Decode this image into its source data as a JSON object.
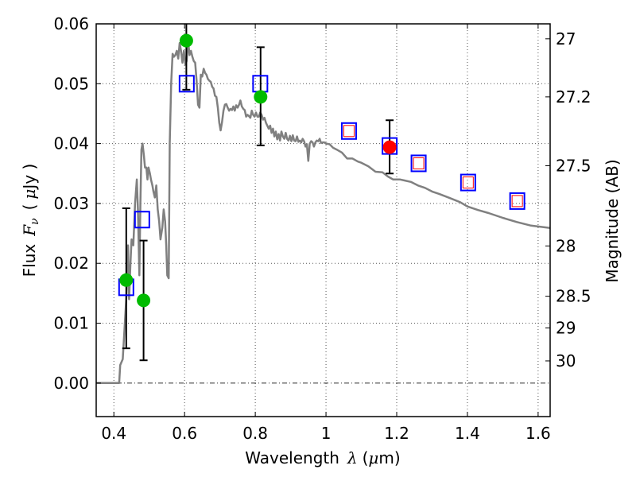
{
  "chart_data": {
    "type": "scatter",
    "title": "",
    "xlabel": "Wavelength",
    "xlabel_symbol": "λ",
    "xlabel_unit_open": "(",
    "xlabel_unit_mu": "μ",
    "xlabel_unit_rest": "m)",
    "ylabel": "Flux",
    "ylabel_symbol": "F",
    "ylabel_subscript": "ν",
    "ylabel_unit_open": "(",
    "ylabel_unit_mu": "μ",
    "ylabel_unit_rest": "Jy )",
    "y2label": "Magnitude (AB)",
    "xlim": [
      0.35,
      1.634
    ],
    "ylim": [
      -0.0056,
      0.06
    ],
    "grid": true,
    "x_ticks": [
      {
        "value": 0.4,
        "label": "0.4"
      },
      {
        "value": 0.6,
        "label": "0.6"
      },
      {
        "value": 0.8,
        "label": "0.8"
      },
      {
        "value": 1.0,
        "label": "1"
      },
      {
        "value": 1.2,
        "label": "1.2"
      },
      {
        "value": 1.4,
        "label": "1.4"
      },
      {
        "value": 1.6,
        "label": "1.6"
      }
    ],
    "y_ticks": [
      {
        "value": 0.0,
        "label": "0.00"
      },
      {
        "value": 0.01,
        "label": "0.01"
      },
      {
        "value": 0.02,
        "label": "0.02"
      },
      {
        "value": 0.03,
        "label": "0.03"
      },
      {
        "value": 0.04,
        "label": "0.04"
      },
      {
        "value": 0.05,
        "label": "0.05"
      },
      {
        "value": 0.06,
        "label": "0.06"
      }
    ],
    "y2_ticks": [
      {
        "flux": 0.0575,
        "label": "27"
      },
      {
        "flux": 0.0478,
        "label": "27.2"
      },
      {
        "flux": 0.0363,
        "label": "27.5"
      },
      {
        "flux": 0.0229,
        "label": "28"
      },
      {
        "flux": 0.0145,
        "label": "28.5"
      },
      {
        "flux": 0.0092,
        "label": "29"
      },
      {
        "flux": 0.0037,
        "label": "30"
      }
    ],
    "colors": {
      "spectrum": "#808080",
      "model": "#0000ff",
      "predicted": "#ff0000",
      "observed": "#00bb00",
      "errorbar": "#000000",
      "grid": "#555555"
    },
    "series": [
      {
        "name": "spectrum",
        "kind": "line",
        "x": [
          0.35,
          0.41,
          0.415,
          0.418,
          0.425,
          0.43,
          0.436,
          0.44,
          0.443,
          0.447,
          0.45,
          0.455,
          0.46,
          0.465,
          0.468,
          0.472,
          0.475,
          0.478,
          0.481,
          0.485,
          0.488,
          0.492,
          0.495,
          0.498,
          0.502,
          0.505,
          0.509,
          0.512,
          0.516,
          0.52,
          0.524,
          0.528,
          0.532,
          0.537,
          0.541,
          0.545,
          0.548,
          0.551,
          0.555,
          0.558,
          0.562,
          0.566,
          0.57,
          0.574,
          0.578,
          0.582,
          0.586,
          0.59,
          0.594,
          0.598,
          0.602,
          0.606,
          0.61,
          0.614,
          0.618,
          0.622,
          0.626,
          0.63,
          0.634,
          0.638,
          0.642,
          0.646,
          0.65,
          0.654,
          0.658,
          0.662,
          0.666,
          0.67,
          0.674,
          0.678,
          0.682,
          0.686,
          0.69,
          0.694,
          0.698,
          0.702,
          0.706,
          0.71,
          0.714,
          0.718,
          0.722,
          0.726,
          0.73,
          0.734,
          0.738,
          0.742,
          0.746,
          0.75,
          0.754,
          0.758,
          0.762,
          0.766,
          0.77,
          0.774,
          0.778,
          0.782,
          0.786,
          0.79,
          0.794,
          0.798,
          0.802,
          0.806,
          0.81,
          0.814,
          0.818,
          0.822,
          0.826,
          0.83,
          0.834,
          0.838,
          0.842,
          0.846,
          0.85,
          0.854,
          0.858,
          0.862,
          0.866,
          0.87,
          0.874,
          0.878,
          0.882,
          0.886,
          0.89,
          0.894,
          0.898,
          0.902,
          0.906,
          0.91,
          0.914,
          0.918,
          0.922,
          0.926,
          0.93,
          0.934,
          0.938,
          0.942,
          0.946,
          0.95,
          0.954,
          0.958,
          0.962,
          0.966,
          0.97,
          0.974,
          0.978,
          0.982,
          0.986,
          0.99,
          0.995,
          1.0,
          1.01,
          1.02,
          1.03,
          1.045,
          1.06,
          1.075,
          1.09,
          1.1,
          1.12,
          1.14,
          1.16,
          1.175,
          1.19,
          1.21,
          1.24,
          1.26,
          1.28,
          1.3,
          1.32,
          1.35,
          1.38,
          1.4,
          1.43,
          1.46,
          1.5,
          1.54,
          1.58,
          1.634
        ],
        "y": [
          0.0,
          0.0,
          0.0,
          0.003,
          0.004,
          0.009,
          0.015,
          0.023,
          0.014,
          0.02,
          0.024,
          0.023,
          0.03,
          0.034,
          0.029,
          0.018,
          0.03,
          0.039,
          0.04,
          0.038,
          0.036,
          0.036,
          0.034,
          0.036,
          0.035,
          0.034,
          0.033,
          0.032,
          0.031,
          0.033,
          0.029,
          0.027,
          0.024,
          0.026,
          0.029,
          0.027,
          0.023,
          0.018,
          0.0175,
          0.04,
          0.05,
          0.055,
          0.0545,
          0.0548,
          0.0555,
          0.0542,
          0.0568,
          0.0555,
          0.0535,
          0.0555,
          0.0532,
          0.0538,
          0.0572,
          0.0548,
          0.0555,
          0.0545,
          0.0538,
          0.0535,
          0.0505,
          0.0465,
          0.046,
          0.0515,
          0.0512,
          0.0525,
          0.0518,
          0.0515,
          0.0508,
          0.0505,
          0.0503,
          0.0495,
          0.0492,
          0.048,
          0.0478,
          0.046,
          0.0435,
          0.0422,
          0.0436,
          0.0455,
          0.0465,
          0.0466,
          0.046,
          0.0455,
          0.0458,
          0.0456,
          0.0462,
          0.0455,
          0.0464,
          0.046,
          0.0465,
          0.0472,
          0.0462,
          0.0458,
          0.0456,
          0.0445,
          0.0448,
          0.0446,
          0.0443,
          0.0455,
          0.0448,
          0.0445,
          0.0452,
          0.0445,
          0.0445,
          0.0452,
          0.0448,
          0.044,
          0.0443,
          0.0435,
          0.043,
          0.0425,
          0.043,
          0.0418,
          0.0425,
          0.0412,
          0.042,
          0.0407,
          0.0416,
          0.0405,
          0.042,
          0.0412,
          0.0408,
          0.0418,
          0.0408,
          0.0405,
          0.0413,
          0.0404,
          0.0414,
          0.0405,
          0.0404,
          0.0412,
          0.0403,
          0.0405,
          0.0402,
          0.0408,
          0.0404,
          0.0395,
          0.0399,
          0.0371,
          0.04,
          0.0404,
          0.0402,
          0.0395,
          0.0402,
          0.0405,
          0.0404,
          0.0408,
          0.0401,
          0.0402,
          0.0402,
          0.04,
          0.0399,
          0.0393,
          0.039,
          0.0385,
          0.0375,
          0.0375,
          0.037,
          0.0368,
          0.0362,
          0.0353,
          0.0352,
          0.0345,
          0.034,
          0.034,
          0.0336,
          0.033,
          0.0326,
          0.032,
          0.0316,
          0.0309,
          0.0302,
          0.0295,
          0.0289,
          0.0284,
          0.0276,
          0.0269,
          0.0263,
          0.0259
        ]
      },
      {
        "name": "model-photometry",
        "kind": "open-square",
        "color_key": "model",
        "points": [
          {
            "x": 0.435,
            "y": 0.016
          },
          {
            "x": 0.48,
            "y": 0.0273
          },
          {
            "x": 0.606,
            "y": 0.05
          },
          {
            "x": 0.814,
            "y": 0.05
          },
          {
            "x": 1.065,
            "y": 0.0421
          },
          {
            "x": 1.18,
            "y": 0.0396
          },
          {
            "x": 1.262,
            "y": 0.0367
          },
          {
            "x": 1.402,
            "y": 0.0335
          },
          {
            "x": 1.541,
            "y": 0.0304
          }
        ]
      },
      {
        "name": "predicted-photometry",
        "kind": "open-square-small",
        "color_key": "predicted",
        "points": [
          {
            "x": 1.065,
            "y": 0.0421
          },
          {
            "x": 1.262,
            "y": 0.0367
          },
          {
            "x": 1.402,
            "y": 0.0335
          },
          {
            "x": 1.541,
            "y": 0.0304
          }
        ]
      },
      {
        "name": "observed-optical",
        "kind": "filled-circle",
        "color_key": "observed",
        "points": [
          {
            "x": 0.435,
            "y": 0.0172,
            "ylo": 0.0058,
            "yhi": 0.0292
          },
          {
            "x": 0.484,
            "y": 0.0138,
            "ylo": 0.0038,
            "yhi": 0.0238
          },
          {
            "x": 0.605,
            "y": 0.0572,
            "ylo": 0.049,
            "yhi": 0.065
          },
          {
            "x": 0.815,
            "y": 0.0478,
            "ylo": 0.0397,
            "yhi": 0.0561
          }
        ]
      },
      {
        "name": "observed-nir",
        "kind": "filled-circle",
        "color_key": "predicted",
        "points": [
          {
            "x": 1.18,
            "y": 0.0394,
            "ylo": 0.035,
            "yhi": 0.0439
          }
        ]
      }
    ]
  }
}
